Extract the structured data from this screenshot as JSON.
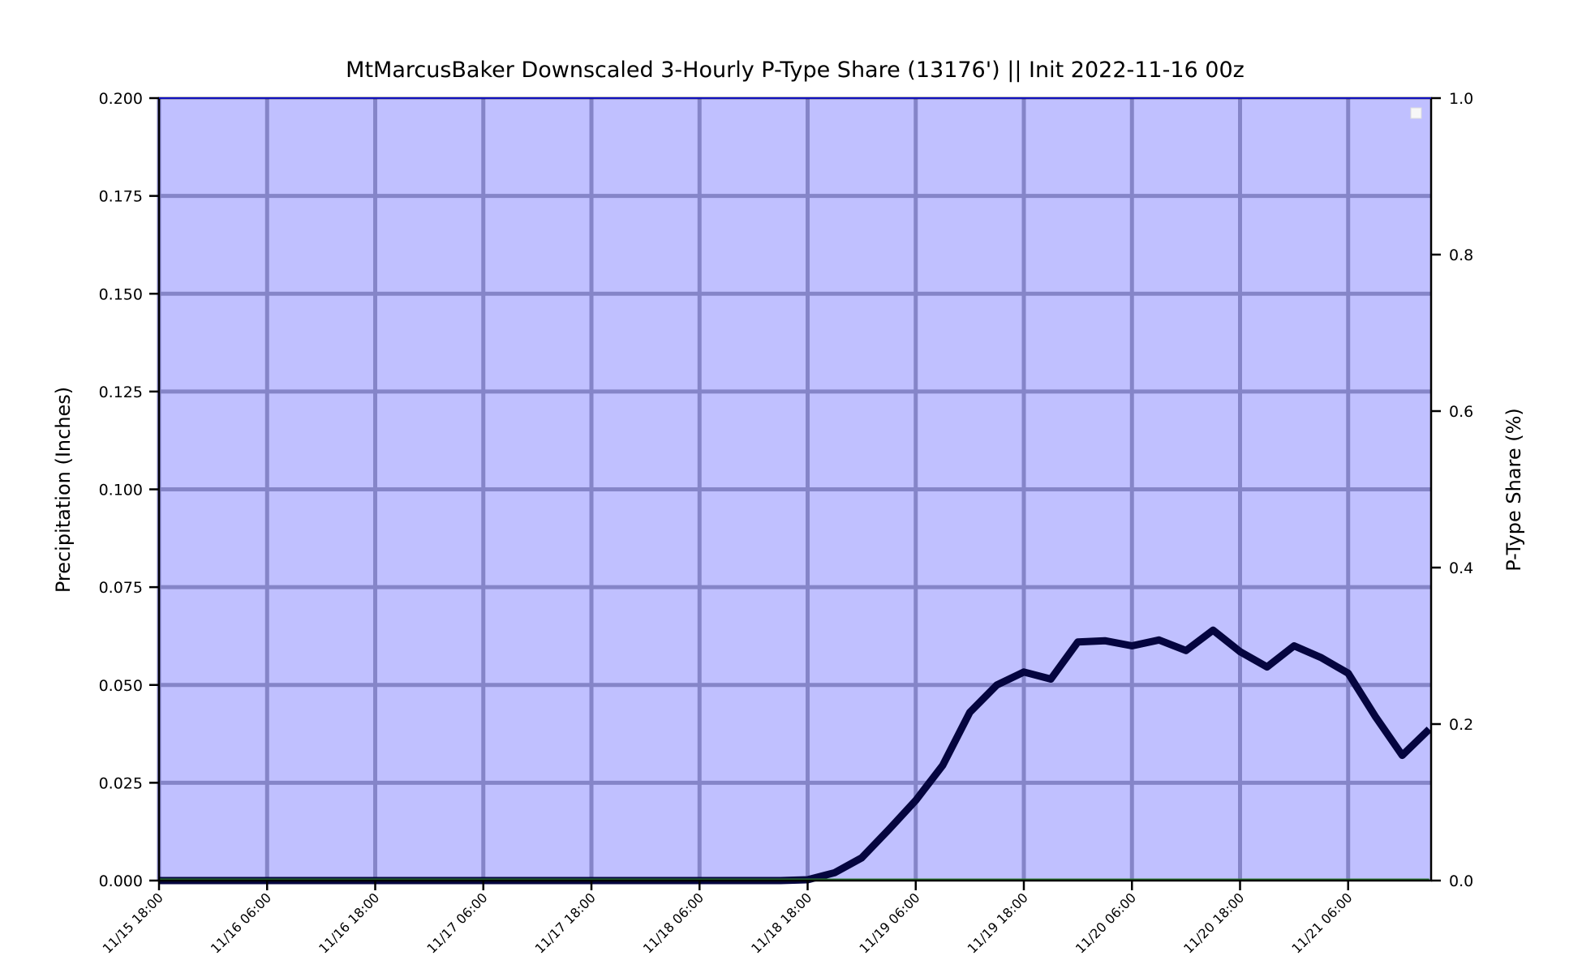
{
  "chart_data": {
    "type": "line",
    "title": "MtMarcusBaker Downscaled 3-Hourly P-Type Share (13176') || Init 2022-11-16 00z",
    "ylabel": "Precipitation (Inches)",
    "y2label": "P-Type Share (%)",
    "ylim": [
      0,
      0.2
    ],
    "y2lim": [
      0,
      1.0
    ],
    "yticks": [
      "0.000",
      "0.025",
      "0.050",
      "0.075",
      "0.100",
      "0.125",
      "0.150",
      "0.175",
      "0.200"
    ],
    "y2ticks": [
      "0.0",
      "0.2",
      "0.4",
      "0.6",
      "0.8",
      "1.0"
    ],
    "xticks": [
      "11/15 18:00",
      "11/16 06:00",
      "11/16 18:00",
      "11/17 06:00",
      "11/17 18:00",
      "11/18 06:00",
      "11/18 18:00",
      "11/19 06:00",
      "11/19 18:00",
      "11/20 06:00",
      "11/20 18:00",
      "11/21 06:00"
    ],
    "x_start": "11/15 18:00",
    "x_end": "11/21 15:00",
    "x_step_hours": 3,
    "grid": true,
    "legend": "top-right",
    "background_color": "#c0c0ff",
    "grid_color": "#8585c8",
    "series": [
      {
        "axis": "left",
        "color": "#05053f",
        "values": [
          0,
          0,
          0,
          0,
          0,
          0,
          0,
          0,
          0,
          0,
          0,
          0,
          0,
          0,
          0,
          0,
          0,
          0,
          0,
          0,
          0,
          0,
          0,
          0,
          0.0002,
          0.002,
          0.0058,
          0.013,
          0.0205,
          0.0295,
          0.043,
          0.05,
          0.0533,
          0.0515,
          0.061,
          0.0613,
          0.06,
          0.0615,
          0.0588,
          0.064,
          0.0585,
          0.0546,
          0.06,
          0.057,
          0.053,
          0.042,
          0.032,
          0.0387
        ]
      },
      {
        "axis": "right",
        "color": "#2e7d32",
        "values": [
          0.001,
          0.001,
          0.001,
          0.001,
          0.001,
          0.001,
          0.001,
          0.001,
          0.001,
          0.001,
          0.001,
          0.001,
          0.001,
          0.001,
          0.001,
          0.001,
          0.001,
          0.001,
          0.001,
          0.001,
          0.001,
          0.001,
          0.001,
          0.001,
          0.001,
          0.001,
          0.001,
          0.001,
          0.001,
          0.001,
          0.001,
          0.001,
          0.001,
          0.001,
          0.001,
          0.001,
          0.001,
          0.001,
          0.001,
          0.001,
          0.001,
          0.001,
          0.001,
          0.001,
          0.001,
          0.001,
          0.001,
          0.001
        ]
      }
    ]
  }
}
